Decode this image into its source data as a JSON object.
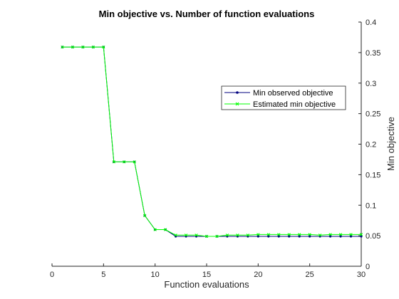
{
  "chart_data": {
    "type": "line",
    "title": "Min objective vs. Number of function evaluations",
    "xlabel": "Function evaluations",
    "ylabel": "Min objective",
    "xlim": [
      0,
      30
    ],
    "ylim": [
      0,
      0.4
    ],
    "x_ticks": [
      "0",
      "5",
      "10",
      "15",
      "20",
      "25",
      "30"
    ],
    "y_ticks": [
      "0",
      "0.05",
      "0.1",
      "0.15",
      "0.2",
      "0.25",
      "0.3",
      "0.35",
      "0.4"
    ],
    "y_axis_side": "right",
    "grid": false,
    "legend_position": "right",
    "x": [
      1,
      2,
      3,
      4,
      5,
      6,
      7,
      8,
      9,
      10,
      11,
      12,
      13,
      14,
      15,
      16,
      17,
      18,
      19,
      20,
      21,
      22,
      23,
      24,
      25,
      26,
      27,
      28,
      29,
      30
    ],
    "series": [
      {
        "name": "Min observed objective",
        "color": "#00007f",
        "marker": "dot",
        "values": [
          0.359,
          0.359,
          0.359,
          0.359,
          0.359,
          0.171,
          0.171,
          0.171,
          0.083,
          0.06,
          0.06,
          0.049,
          0.049,
          0.049,
          0.049,
          0.049,
          0.049,
          0.049,
          0.049,
          0.049,
          0.049,
          0.049,
          0.049,
          0.049,
          0.049,
          0.049,
          0.049,
          0.049,
          0.049,
          0.049
        ]
      },
      {
        "name": "Estimated min objective",
        "color": "#00ff00",
        "marker": "x",
        "values": [
          0.359,
          0.359,
          0.359,
          0.359,
          0.359,
          0.171,
          0.171,
          0.171,
          0.083,
          0.06,
          0.06,
          0.051,
          0.051,
          0.051,
          0.049,
          0.049,
          0.051,
          0.051,
          0.051,
          0.052,
          0.052,
          0.052,
          0.052,
          0.052,
          0.052,
          0.051,
          0.052,
          0.052,
          0.052,
          0.052
        ]
      }
    ]
  }
}
